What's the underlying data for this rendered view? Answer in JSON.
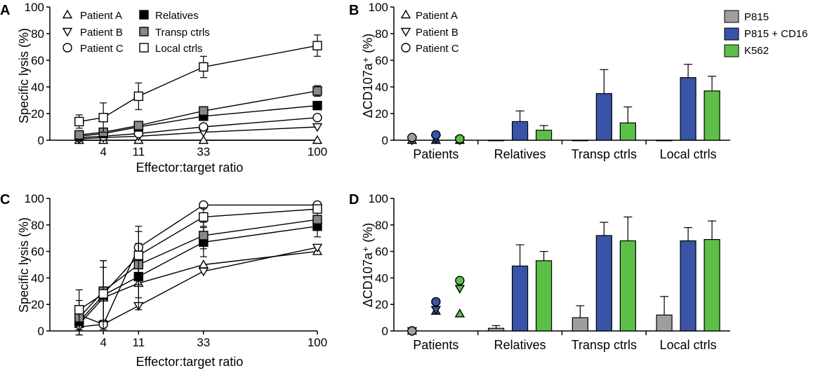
{
  "chart_data": [
    {
      "panel": "A",
      "type": "line",
      "xlabel": "Effector:target ratio",
      "ylabel": "Specific lysis (%)",
      "ylim": [
        0,
        100
      ],
      "yticks": [
        0,
        20,
        40,
        60,
        80,
        100
      ],
      "xticks": [
        4,
        11,
        33,
        100
      ],
      "x": [
        1.2,
        4,
        11,
        33,
        100
      ],
      "legend_col1": [
        "Patient A",
        "Patient B",
        "Patient C"
      ],
      "legend_col2": [
        "Relatives",
        "Transp ctrls",
        "Local ctrls"
      ],
      "series": [
        {
          "name": "Patient A",
          "marker": "triangle-up",
          "fill": "#ffffff",
          "values": [
            0,
            0,
            0,
            0,
            0
          ],
          "errors": [
            0,
            0,
            0,
            0,
            0
          ]
        },
        {
          "name": "Patient B",
          "marker": "triangle-down",
          "fill": "#ffffff",
          "values": [
            1,
            2,
            3,
            6,
            10
          ],
          "errors": [
            0,
            0,
            0,
            0,
            0
          ]
        },
        {
          "name": "Patient C",
          "marker": "circle",
          "fill": "#ffffff",
          "values": [
            2,
            3,
            5,
            10,
            17
          ],
          "errors": [
            0,
            0,
            0,
            0,
            0
          ]
        },
        {
          "name": "Relatives",
          "marker": "square",
          "fill": "#000000",
          "values": [
            3,
            5,
            10,
            18,
            26
          ],
          "errors": [
            1,
            2,
            3,
            3,
            3
          ]
        },
        {
          "name": "Transp ctrls",
          "marker": "square",
          "fill": "#888888",
          "values": [
            4,
            6,
            11,
            22,
            37
          ],
          "errors": [
            1,
            2,
            3,
            3,
            4
          ]
        },
        {
          "name": "Local ctrls",
          "marker": "square",
          "fill": "#ffffff",
          "values": [
            14,
            17,
            33,
            55,
            71
          ],
          "errors": [
            5,
            11,
            10,
            8,
            8
          ]
        }
      ]
    },
    {
      "panel": "B",
      "type": "bar",
      "ylabel": "ΔCD107a⁺ (%)",
      "ylim": [
        0,
        100
      ],
      "yticks": [
        0,
        20,
        40,
        60,
        80,
        100
      ],
      "categories": [
        "Patients",
        "Relatives",
        "Transp ctrls",
        "Local ctrls"
      ],
      "series_names": [
        "P815",
        "P815 + CD16",
        "K562"
      ],
      "series_colors": [
        "#9e9e9e",
        "#3953a6",
        "#5cbf47"
      ],
      "values": [
        [
          0,
          14,
          7.5
        ],
        [
          0,
          35,
          13
        ],
        [
          0,
          47,
          37
        ]
      ],
      "errors": [
        [
          0,
          8,
          3.5
        ],
        [
          0,
          18,
          12
        ],
        [
          0,
          10,
          11
        ]
      ],
      "legend_col1": [
        "Patient A",
        "Patient B",
        "Patient C"
      ],
      "patient_points": [
        {
          "marker": "triangle-up",
          "values": [
            0,
            0,
            0
          ]
        },
        {
          "marker": "triangle-down",
          "values": [
            0,
            1,
            0
          ]
        },
        {
          "marker": "circle",
          "values": [
            2,
            4,
            1
          ]
        }
      ]
    },
    {
      "panel": "C",
      "type": "line",
      "xlabel": "Effector:target ratio",
      "ylabel": "Specific lysis (%)",
      "ylim": [
        0,
        100
      ],
      "yticks": [
        0,
        20,
        40,
        60,
        80,
        100
      ],
      "xticks": [
        4,
        11,
        33,
        100
      ],
      "x": [
        1.2,
        4,
        11,
        33,
        100
      ],
      "series": [
        {
          "name": "Patient A",
          "marker": "triangle-up",
          "fill": "#ffffff",
          "values": [
            5,
            25,
            36,
            50,
            60
          ],
          "errors": [
            0,
            0,
            0,
            0,
            0
          ]
        },
        {
          "name": "Patient B",
          "marker": "triangle-down",
          "fill": "#ffffff",
          "values": [
            3,
            5,
            19,
            45,
            63
          ],
          "errors": [
            0,
            0,
            0,
            0,
            0
          ]
        },
        {
          "name": "Patient C",
          "marker": "circle",
          "fill": "#ffffff",
          "values": [
            12,
            5,
            63,
            95,
            95
          ],
          "errors": [
            0,
            0,
            0,
            0,
            0
          ]
        },
        {
          "name": "Relatives",
          "marker": "square",
          "fill": "#000000",
          "values": [
            7,
            27,
            41,
            67,
            79
          ],
          "errors": [
            10,
            26,
            25,
            11,
            8
          ]
        },
        {
          "name": "Transp ctrls",
          "marker": "square",
          "fill": "#888888",
          "values": [
            10,
            30,
            50,
            72,
            84
          ],
          "errors": [
            13,
            23,
            25,
            10,
            8
          ]
        },
        {
          "name": "Local ctrls",
          "marker": "square",
          "fill": "#ffffff",
          "values": [
            16,
            28,
            57,
            86,
            92
          ],
          "errors": [
            15,
            20,
            22,
            7,
            3
          ]
        }
      ]
    },
    {
      "panel": "D",
      "type": "bar",
      "ylabel": "ΔCD107a⁺ (%)",
      "ylim": [
        0,
        100
      ],
      "yticks": [
        0,
        20,
        40,
        60,
        80,
        100
      ],
      "categories": [
        "Patients",
        "Relatives",
        "Transp ctrls",
        "Local ctrls"
      ],
      "series_names": [
        "P815",
        "P815 + CD16",
        "K562"
      ],
      "series_colors": [
        "#9e9e9e",
        "#3953a6",
        "#5cbf47"
      ],
      "values": [
        [
          2,
          49,
          53
        ],
        [
          10,
          72,
          68
        ],
        [
          12,
          68,
          69
        ]
      ],
      "errors": [
        [
          2,
          16,
          7
        ],
        [
          9,
          10,
          18
        ],
        [
          14,
          10,
          14
        ]
      ],
      "patient_points": [
        {
          "marker": "triangle-up",
          "values": [
            0,
            15,
            13
          ]
        },
        {
          "marker": "triangle-down",
          "values": [
            0,
            16,
            32
          ]
        },
        {
          "marker": "circle",
          "values": [
            0,
            22,
            38
          ]
        }
      ]
    }
  ]
}
